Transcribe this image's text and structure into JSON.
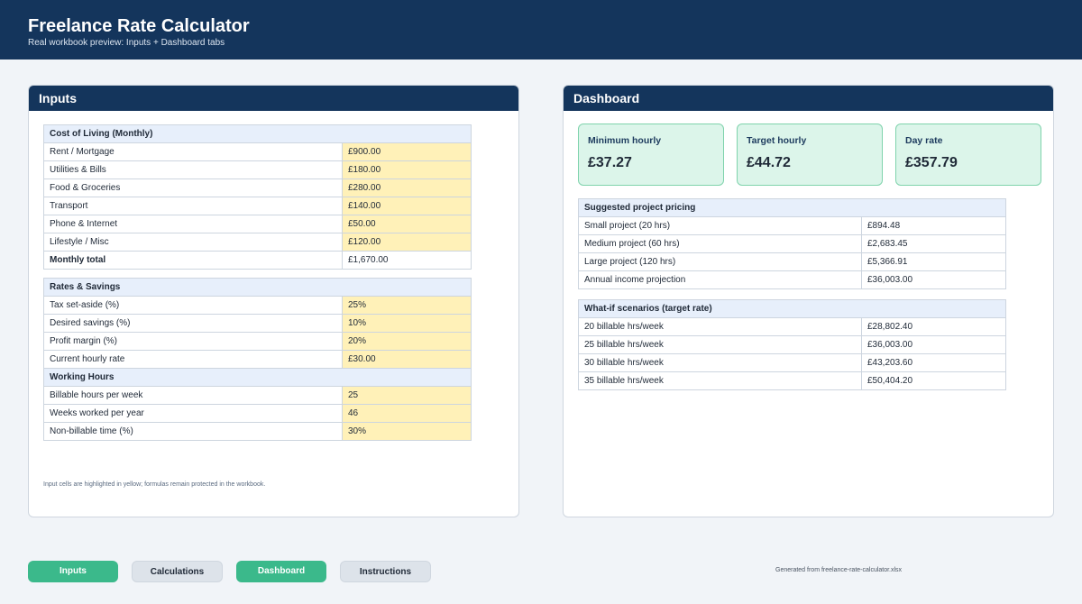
{
  "header": {
    "title": "Freelance Rate Calculator",
    "subtitle": "Real workbook preview: Inputs + Dashboard tabs"
  },
  "inputs": {
    "title": "Inputs",
    "cost_of_living": {
      "heading": "Cost of Living (Monthly)",
      "rows": [
        {
          "label": "Rent / Mortgage",
          "value": "£900.00"
        },
        {
          "label": "Utilities & Bills",
          "value": "£180.00"
        },
        {
          "label": "Food & Groceries",
          "value": "£280.00"
        },
        {
          "label": "Transport",
          "value": "£140.00"
        },
        {
          "label": "Phone & Internet",
          "value": "£50.00"
        },
        {
          "label": "Lifestyle / Misc",
          "value": "£120.00"
        }
      ],
      "total": {
        "label": "Monthly total",
        "value": "£1,670.00"
      }
    },
    "rates_savings": {
      "heading": "Rates & Savings",
      "rows": [
        {
          "label": "Tax set-aside (%)",
          "value": "25%"
        },
        {
          "label": "Desired savings (%)",
          "value": "10%"
        },
        {
          "label": "Profit margin (%)",
          "value": "20%"
        },
        {
          "label": "Current hourly rate",
          "value": "£30.00"
        }
      ]
    },
    "working_hours": {
      "heading": "Working Hours",
      "rows": [
        {
          "label": "Billable hours per week",
          "value": "25"
        },
        {
          "label": "Weeks worked per year",
          "value": "46"
        },
        {
          "label": "Non-billable time (%)",
          "value": "30%"
        }
      ]
    },
    "note": "Input cells are highlighted in yellow; formulas remain protected in the workbook."
  },
  "dashboard": {
    "title": "Dashboard",
    "cards": [
      {
        "label": "Minimum hourly",
        "value": "£37.27"
      },
      {
        "label": "Target hourly",
        "value": "£44.72"
      },
      {
        "label": "Day rate",
        "value": "£357.79"
      }
    ],
    "project_pricing": {
      "heading": "Suggested project pricing",
      "rows": [
        {
          "label": "Small project (20 hrs)",
          "value": "£894.48"
        },
        {
          "label": "Medium project (60 hrs)",
          "value": "£2,683.45"
        },
        {
          "label": "Large project (120 hrs)",
          "value": "£5,366.91"
        },
        {
          "label": "Annual income projection",
          "value": "£36,003.00"
        }
      ]
    },
    "scenarios": {
      "heading": "What-if scenarios (target rate)",
      "rows": [
        {
          "label": "20 billable hrs/week",
          "value": "£28,802.40"
        },
        {
          "label": "25 billable hrs/week",
          "value": "£36,003.00"
        },
        {
          "label": "30 billable hrs/week",
          "value": "£43,203.60"
        },
        {
          "label": "35 billable hrs/week",
          "value": "£50,404.20"
        }
      ]
    }
  },
  "tabs": [
    {
      "label": "Inputs",
      "state": "active"
    },
    {
      "label": "Calculations",
      "state": "inactive"
    },
    {
      "label": "Dashboard",
      "state": "active"
    },
    {
      "label": "Instructions",
      "state": "inactive"
    }
  ],
  "footer": {
    "note": "Generated from freelance-rate-calculator.xlsx"
  },
  "colors": {
    "header_bg": "#14355c",
    "input_cell": "#fff1b8",
    "section_bg": "#e7effb",
    "card_bg": "#dcf5ea",
    "tab_active": "#3bb98b"
  }
}
